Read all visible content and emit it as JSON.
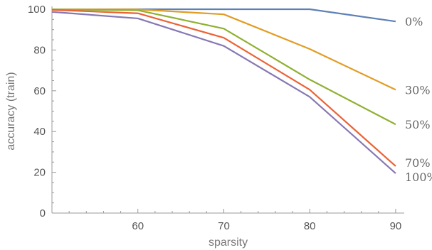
{
  "chart_data": {
    "type": "line",
    "title": "",
    "xlabel": "sparsity",
    "ylabel": "accuracy (train)",
    "xlim": [
      50,
      91
    ],
    "ylim": [
      0,
      100
    ],
    "x": [
      50,
      60,
      70,
      80,
      90
    ],
    "x_ticks": [
      60,
      70,
      80,
      90
    ],
    "y_ticks": [
      0,
      20,
      40,
      60,
      80,
      100
    ],
    "grid": false,
    "legend": "inline labels at line ends",
    "series": [
      {
        "name": "0%",
        "color": "#5E81B5",
        "values": [
          99.9,
          100,
          100,
          100,
          94
        ]
      },
      {
        "name": "30%",
        "color": "#E19C24",
        "values": [
          99.9,
          99.9,
          97.5,
          80.5,
          60.5
        ]
      },
      {
        "name": "50%",
        "color": "#8FB032",
        "values": [
          99.9,
          99.5,
          90.5,
          65.5,
          43.5
        ]
      },
      {
        "name": "70%",
        "color": "#EB6235",
        "values": [
          99.7,
          98,
          86,
          60.5,
          23
        ]
      },
      {
        "name": "100%",
        "color": "#8778B3",
        "values": [
          98.7,
          95.5,
          82,
          57,
          19.5
        ]
      }
    ]
  }
}
